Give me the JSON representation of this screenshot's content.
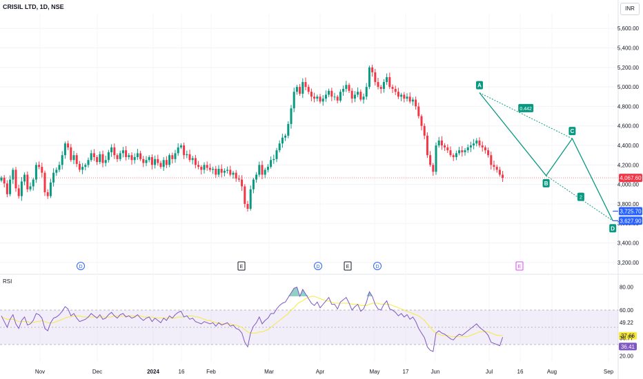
{
  "header": {
    "title": "CRISIL LTD, 1D, NSE",
    "currency": "INR"
  },
  "rsi_label": "RSI",
  "colors": {
    "up": "#089981",
    "down": "#f23645",
    "rsi": "#7e57c2",
    "rsi_ma": "#f7e93b",
    "pattern": "#089981",
    "target": "#2962ff",
    "event_div": "#2962ff",
    "event_earn": "#131722",
    "event_earn_future": "#e040fb"
  },
  "chart_data": [
    {
      "type": "candlestick",
      "title": "CRISIL LTD, 1D, NSE",
      "ylim": [
        3100,
        5750
      ],
      "y_ticks": [
        "5,600.00",
        "5,400.00",
        "5,200.00",
        "5,000.00",
        "4,800.00",
        "4,600.00",
        "4,400.00",
        "4,200.00",
        "4,000.00",
        "3,800.00",
        "3,600.00",
        "3,400.00",
        "3,200.00"
      ],
      "y_tick_values": [
        5600,
        5400,
        5200,
        5000,
        4800,
        4600,
        4400,
        4200,
        4000,
        3800,
        3600,
        3400,
        3200
      ],
      "x_ticks": [
        "Nov",
        "Dec",
        "2024",
        "16",
        "Feb",
        "Mar",
        "Apr",
        "May",
        "17",
        "Jun",
        "Jul",
        "16",
        "Aug",
        "Sep"
      ],
      "last_price": {
        "label": "4,067.60",
        "value": 4067.6
      },
      "targets": [
        {
          "label": "3,725.70",
          "value": 3725.7
        },
        {
          "label": "3,627.90",
          "value": 3627.9
        }
      ],
      "pattern": {
        "points": [
          {
            "label": "A",
            "day": 165,
            "value": 4940
          },
          {
            "label": "B",
            "day": 188,
            "value": 4090
          },
          {
            "label": "C",
            "day": 197,
            "value": 4470
          },
          {
            "label": "D",
            "day": 211,
            "value": 3628
          }
        ],
        "ratios": [
          "0.442",
          "2"
        ]
      },
      "events": [
        "D",
        "E",
        "D",
        "E",
        "D",
        "E"
      ],
      "closes_note": "daily closes estimated from the price axis",
      "closes": [
        4070,
        4010,
        3900,
        4050,
        4150,
        3960,
        3880,
        4030,
        4100,
        3950,
        3980,
        4050,
        4200,
        4180,
        4120,
        3920,
        3880,
        4020,
        4120,
        4150,
        4200,
        4300,
        4420,
        4380,
        4250,
        4300,
        4210,
        4150,
        4180,
        4200,
        4250,
        4320,
        4280,
        4230,
        4310,
        4220,
        4250,
        4330,
        4380,
        4300,
        4260,
        4320,
        4350,
        4280,
        4300,
        4250,
        4280,
        4320,
        4260,
        4220,
        4250,
        4280,
        4200,
        4260,
        4220,
        4180,
        4250,
        4200,
        4300,
        4260,
        4320,
        4380,
        4400,
        4300,
        4310,
        4250,
        4270,
        4200,
        4180,
        4150,
        4200,
        4170,
        4150,
        4160,
        4100,
        4160,
        4120,
        4140,
        4150,
        4100,
        4120,
        4060,
        4050,
        3980,
        3800,
        3750,
        3950,
        4050,
        4100,
        4200,
        4100,
        4150,
        4180,
        4250,
        4260,
        4350,
        4420,
        4480,
        4500,
        4620,
        4780,
        4950,
        5000,
        4930,
        5050,
        5000,
        4950,
        4900,
        4880,
        4900,
        4850,
        4880,
        4920,
        4960,
        4900,
        4900,
        4860,
        4950,
        4980,
        5020,
        4960,
        4880,
        4920,
        4950,
        4870,
        4900,
        5000,
        5200,
        5150,
        5050,
        5000,
        4980,
        5050,
        5100,
        5000,
        4980,
        4950,
        4900,
        4920,
        4880,
        4900,
        4850,
        4870,
        4800,
        4700,
        4600,
        4500,
        4300,
        4200,
        4130,
        4400,
        4450,
        4400,
        4380,
        4350,
        4300,
        4280,
        4320,
        4350,
        4330,
        4350,
        4380,
        4400,
        4420,
        4450,
        4400,
        4380,
        4350,
        4300,
        4200,
        4180,
        4150,
        4100,
        4067.6
      ],
      "rsi": {
        "ylim": [
          15,
          90
        ],
        "y_ticks": [
          "80.00",
          "60.00",
          "49.22",
          "37.66",
          "36.77",
          "36.41",
          "20.00"
        ],
        "band": [
          30,
          60
        ],
        "last": {
          "label": "36.41",
          "value": 36.41
        },
        "ma_last": {
          "label": "37.66",
          "value": 37.66
        },
        "values": [
          55,
          50,
          45,
          52,
          56,
          48,
          44,
          51,
          54,
          47,
          48,
          51,
          57,
          56,
          53,
          44,
          42,
          49,
          53,
          54,
          56,
          59,
          63,
          61,
          55,
          57,
          53,
          50,
          51,
          52,
          54,
          57,
          55,
          53,
          56,
          52,
          53,
          56,
          58,
          55,
          53,
          56,
          57,
          54,
          55,
          53,
          54,
          56,
          53,
          51,
          53,
          54,
          50,
          53,
          51,
          49,
          53,
          51,
          55,
          53,
          56,
          58,
          59,
          54,
          55,
          52,
          53,
          50,
          49,
          48,
          50,
          49,
          48,
          49,
          46,
          49,
          47,
          48,
          49,
          46,
          47,
          44,
          43,
          40,
          32,
          28,
          40,
          46,
          49,
          54,
          48,
          51,
          53,
          57,
          57,
          61,
          64,
          66,
          67,
          71,
          75,
          79,
          80,
          72,
          78,
          74,
          70,
          66,
          64,
          67,
          62,
          65,
          68,
          71,
          65,
          65,
          61,
          67,
          69,
          71,
          66,
          60,
          63,
          65,
          59,
          61,
          67,
          76,
          72,
          65,
          61,
          60,
          65,
          68,
          61,
          60,
          58,
          55,
          57,
          54,
          56,
          52,
          54,
          50,
          44,
          40,
          36,
          28,
          25,
          24,
          40,
          42,
          40,
          39,
          37,
          35,
          34,
          37,
          39,
          38,
          40,
          42,
          44,
          46,
          48,
          45,
          43,
          41,
          38,
          32,
          31,
          30,
          29,
          36.41
        ],
        "ma_values": [
          54,
          53,
          52,
          52,
          52,
          51,
          50,
          50,
          50,
          50,
          49,
          49,
          50,
          50,
          51,
          50,
          49,
          49,
          49,
          50,
          51,
          52,
          53,
          54,
          54,
          55,
          55,
          55,
          54,
          54,
          54,
          54,
          54,
          54,
          54,
          54,
          54,
          54,
          54,
          55,
          55,
          55,
          55,
          55,
          55,
          55,
          55,
          55,
          55,
          54,
          54,
          54,
          54,
          53,
          53,
          53,
          53,
          53,
          53,
          53,
          53,
          54,
          54,
          54,
          55,
          55,
          55,
          54,
          54,
          53,
          52,
          51,
          51,
          50,
          49,
          49,
          48,
          48,
          48,
          48,
          47,
          47,
          46,
          45,
          43,
          41,
          40,
          40,
          40,
          41,
          41,
          42,
          43,
          45,
          47,
          49,
          51,
          53,
          55,
          57,
          60,
          62,
          65,
          67,
          68,
          70,
          71,
          72,
          72,
          71,
          70,
          69,
          68,
          68,
          67,
          66,
          66,
          66,
          66,
          66,
          66,
          65,
          65,
          65,
          64,
          64,
          64,
          65,
          66,
          66,
          66,
          65,
          65,
          65,
          65,
          64,
          63,
          62,
          61,
          60,
          59,
          58,
          57,
          56,
          55,
          53,
          51,
          48,
          45,
          42,
          40,
          39,
          38,
          38,
          38,
          37,
          37,
          37,
          37,
          37,
          37,
          37,
          38,
          39,
          40,
          41,
          41,
          41,
          41,
          40,
          39,
          38,
          38,
          37.66
        ]
      }
    }
  ]
}
